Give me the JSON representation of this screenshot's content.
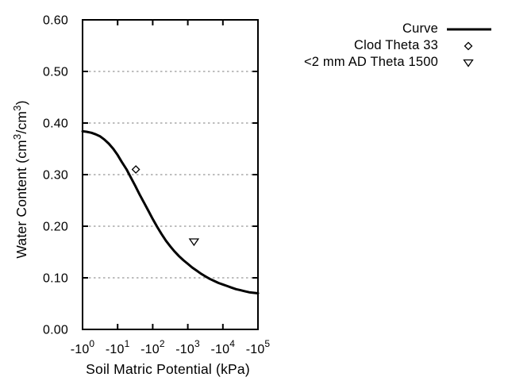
{
  "chart_data": {
    "type": "line",
    "title": "",
    "xlabel": "Soil Matric Potential (kPa)",
    "ylabel": "Water Content (cm³/cm³)",
    "ylabel_parts": [
      "Water Content (cm",
      "3",
      "/cm",
      "3",
      ")"
    ],
    "x_axis": {
      "scale": "log-negative",
      "tick_prefix": "-10",
      "tick_exponents": [
        "0",
        "1",
        "2",
        "3",
        "4",
        "5"
      ],
      "min_exp": 0,
      "max_exp": 5
    },
    "y_axis": {
      "min": 0,
      "max": 0.6,
      "tick_values": [
        0.0,
        0.1,
        0.2,
        0.3,
        0.4,
        0.5,
        0.6
      ],
      "tick_labels": [
        "0.00",
        "0.10",
        "0.20",
        "0.30",
        "0.40",
        "0.50",
        "0.60"
      ],
      "grid_values": [
        0.1,
        0.2,
        0.3,
        0.4,
        0.5
      ],
      "grid_style": "dashed"
    },
    "series": [
      {
        "name": "Curve",
        "type": "line",
        "kpa": [
          1,
          1.3,
          1.8,
          2.4,
          3.2,
          4.2,
          5.6,
          7.5,
          10,
          13,
          18,
          24,
          32,
          42,
          56,
          75,
          100,
          133,
          178,
          237,
          316,
          422,
          562,
          750,
          1000,
          1330,
          1780,
          2370,
          3160,
          4220,
          5620,
          7500,
          10000,
          13300,
          17800,
          23700,
          31600,
          42200,
          56200,
          75000,
          100000
        ],
        "theta": [
          0.384,
          0.383,
          0.381,
          0.378,
          0.374,
          0.368,
          0.36,
          0.35,
          0.338,
          0.325,
          0.31,
          0.294,
          0.278,
          0.262,
          0.246,
          0.23,
          0.214,
          0.199,
          0.185,
          0.172,
          0.161,
          0.151,
          0.142,
          0.134,
          0.127,
          0.12,
          0.114,
          0.108,
          0.103,
          0.098,
          0.094,
          0.09,
          0.087,
          0.084,
          0.081,
          0.078,
          0.076,
          0.074,
          0.072,
          0.071,
          0.07
        ]
      }
    ],
    "points": [
      {
        "name": "Clod Theta 33",
        "marker": "diamond-open",
        "kpa": 33,
        "theta": 0.31
      },
      {
        "name": "<2 mm AD Theta 1500",
        "marker": "triangle-down-open",
        "kpa": 1500,
        "theta": 0.17
      }
    ],
    "legend": {
      "position": "outside-top-right",
      "entries": [
        {
          "label": "Curve",
          "swatch": "line"
        },
        {
          "label": "Clod Theta 33",
          "swatch": "diamond-open"
        },
        {
          "label": "<2 mm AD Theta 1500",
          "swatch": "triangle-down-open"
        }
      ]
    },
    "colors": {
      "line": "#000000",
      "axis": "#000000",
      "grid": "#a8a8a8",
      "marker_stroke": "#000000",
      "background": "#ffffff"
    }
  }
}
